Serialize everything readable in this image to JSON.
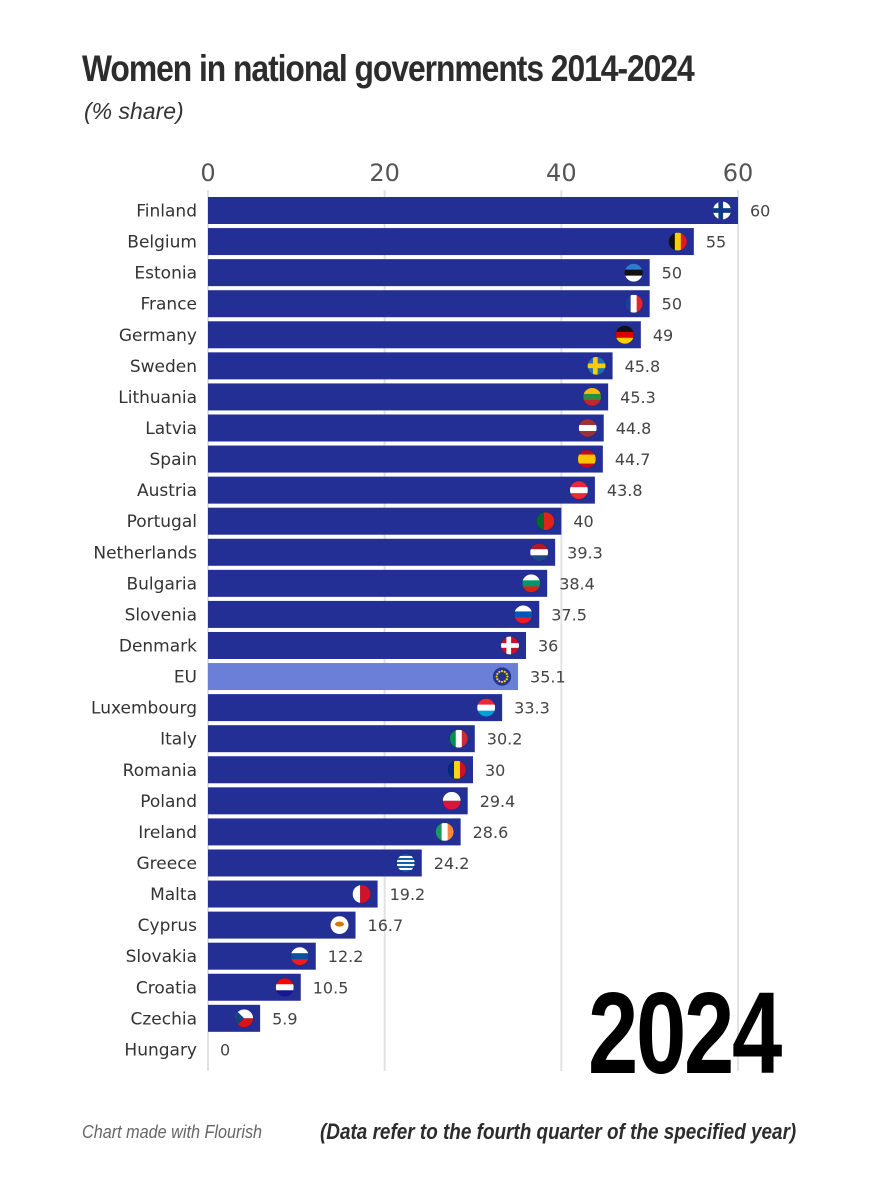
{
  "chart_data": {
    "type": "bar",
    "orientation": "horizontal",
    "title": "Women in national governments 2014-2024",
    "subtitle": "(% share)",
    "year": "2024",
    "credit": "Chart made with Flourish",
    "note": "(Data refer to the fourth quarter of the specified year)",
    "xlim": [
      0,
      60
    ],
    "ticks": [
      0,
      20,
      40,
      60
    ],
    "grid": true,
    "bar_color": "#232f94",
    "highlight_color": "#6b7fd9",
    "highlight_category": "EU",
    "categories": [
      "Finland",
      "Belgium",
      "Estonia",
      "France",
      "Germany",
      "Sweden",
      "Lithuania",
      "Latvia",
      "Spain",
      "Austria",
      "Portugal",
      "Netherlands",
      "Bulgaria",
      "Slovenia",
      "Denmark",
      "EU",
      "Luxembourg",
      "Italy",
      "Romania",
      "Poland",
      "Ireland",
      "Greece",
      "Malta",
      "Cyprus",
      "Slovakia",
      "Croatia",
      "Czechia",
      "Hungary"
    ],
    "values": [
      60,
      55,
      50,
      50,
      49,
      45.8,
      45.3,
      44.8,
      44.7,
      43.8,
      40,
      39.3,
      38.4,
      37.5,
      36,
      35.1,
      33.3,
      30.2,
      30,
      29.4,
      28.6,
      24.2,
      19.2,
      16.7,
      12.2,
      10.5,
      5.9,
      0
    ],
    "value_labels": [
      "60",
      "55",
      "50",
      "50",
      "49",
      "45.8",
      "45.3",
      "44.8",
      "44.7",
      "43.8",
      "40",
      "39.3",
      "38.4",
      "37.5",
      "36",
      "35.1",
      "33.3",
      "30.2",
      "30",
      "29.4",
      "28.6",
      "24.2",
      "19.2",
      "16.7",
      "12.2",
      "10.5",
      "5.9",
      "0"
    ],
    "flags": [
      {
        "name": "finland-flag-icon",
        "type": "nordic",
        "colors": [
          "#ffffff",
          "#0d3a86"
        ]
      },
      {
        "name": "belgium-flag-icon",
        "type": "vert",
        "colors": [
          "#111111",
          "#f5d000",
          "#e0182d"
        ]
      },
      {
        "name": "estonia-flag-icon",
        "type": "horiz",
        "colors": [
          "#2c7cd1",
          "#111111",
          "#ffffff"
        ]
      },
      {
        "name": "france-flag-icon",
        "type": "vert",
        "colors": [
          "#1f3b9c",
          "#ffffff",
          "#e4242e"
        ]
      },
      {
        "name": "germany-flag-icon",
        "type": "horiz",
        "colors": [
          "#111111",
          "#dd0000",
          "#ffce00"
        ]
      },
      {
        "name": "sweden-flag-icon",
        "type": "nordic",
        "colors": [
          "#1f6fb5",
          "#fecb00"
        ]
      },
      {
        "name": "lithuania-flag-icon",
        "type": "horiz",
        "colors": [
          "#fdb913",
          "#2a8f3a",
          "#c1272d"
        ]
      },
      {
        "name": "latvia-flag-icon",
        "type": "horiz",
        "colors": [
          "#9e3039",
          "#ffffff",
          "#9e3039"
        ]
      },
      {
        "name": "spain-flag-icon",
        "type": "horiz3",
        "colors": [
          "#c60b1e",
          "#ffc400",
          "#c60b1e"
        ]
      },
      {
        "name": "austria-flag-icon",
        "type": "horiz",
        "colors": [
          "#ed2939",
          "#ffffff",
          "#ed2939"
        ]
      },
      {
        "name": "portugal-flag-icon",
        "type": "vert2",
        "colors": [
          "#056a2e",
          "#e2231a"
        ]
      },
      {
        "name": "netherlands-flag-icon",
        "type": "horiz",
        "colors": [
          "#ae1c28",
          "#ffffff",
          "#21468b"
        ]
      },
      {
        "name": "bulgaria-flag-icon",
        "type": "horiz",
        "colors": [
          "#ffffff",
          "#00966e",
          "#d62612"
        ]
      },
      {
        "name": "slovenia-flag-icon",
        "type": "horiz",
        "colors": [
          "#ffffff",
          "#0057b8",
          "#ed1c24"
        ]
      },
      {
        "name": "denmark-flag-icon",
        "type": "nordic",
        "colors": [
          "#c8102e",
          "#ffffff"
        ]
      },
      {
        "name": "eu-flag-icon",
        "type": "eu",
        "colors": [
          "#1f3694",
          "#ffcc00"
        ]
      },
      {
        "name": "luxembourg-flag-icon",
        "type": "horiz",
        "colors": [
          "#ed2939",
          "#ffffff",
          "#00a1de"
        ]
      },
      {
        "name": "italy-flag-icon",
        "type": "vert",
        "colors": [
          "#009246",
          "#ffffff",
          "#ce2b37"
        ]
      },
      {
        "name": "romania-flag-icon",
        "type": "vert",
        "colors": [
          "#002b7f",
          "#fcd116",
          "#ce1126"
        ]
      },
      {
        "name": "poland-flag-icon",
        "type": "horiz2",
        "colors": [
          "#ffffff",
          "#dc143c"
        ]
      },
      {
        "name": "ireland-flag-icon",
        "type": "vert",
        "colors": [
          "#169b62",
          "#ffffff",
          "#ff883e"
        ]
      },
      {
        "name": "greece-flag-icon",
        "type": "stripes",
        "colors": [
          "#0d5eaf",
          "#ffffff"
        ]
      },
      {
        "name": "malta-flag-icon",
        "type": "vert2",
        "colors": [
          "#ffffff",
          "#cf142b"
        ]
      },
      {
        "name": "cyprus-flag-icon",
        "type": "cyprus",
        "colors": [
          "#ffffff",
          "#d57800"
        ]
      },
      {
        "name": "slovakia-flag-icon",
        "type": "horiz",
        "colors": [
          "#ffffff",
          "#0b4ea2",
          "#ee1c25"
        ]
      },
      {
        "name": "croatia-flag-icon",
        "type": "horiz",
        "colors": [
          "#ff0000",
          "#ffffff",
          "#171796"
        ]
      },
      {
        "name": "czechia-flag-icon",
        "type": "czech",
        "colors": [
          "#ffffff",
          "#d7141a",
          "#11457e"
        ]
      },
      {
        "name": "hungary-flag-icon",
        "type": "none",
        "colors": []
      }
    ]
  }
}
